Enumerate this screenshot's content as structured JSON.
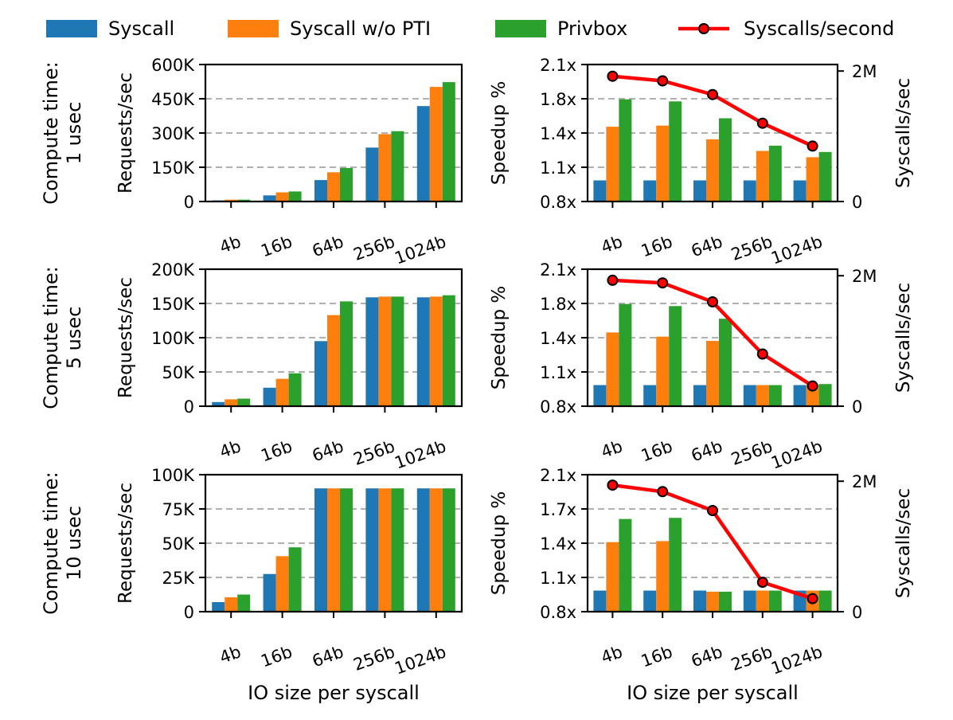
{
  "legend": [
    {
      "label": "Syscall",
      "color": "#1f77b4",
      "kind": "bar"
    },
    {
      "label": "Syscall w/o PTI",
      "color": "#ff7f0e",
      "kind": "bar"
    },
    {
      "label": "Privbox",
      "color": "#2ca02c",
      "kind": "bar"
    },
    {
      "label": "Syscalls/second",
      "color": "#ff0000",
      "kind": "line"
    }
  ],
  "chart_data": [
    {
      "type": "bar",
      "row": 1,
      "col": "left",
      "row_label": [
        "Compute time:",
        "1 usec"
      ],
      "ylabel": "Requests/sec",
      "xlabel": "",
      "categories": [
        "4b",
        "16b",
        "64b",
        "256b",
        "1024b"
      ],
      "yticks": [
        "0",
        "150K",
        "300K",
        "450K",
        "600K"
      ],
      "ylim": [
        0,
        600000
      ],
      "grid": true,
      "series": [
        {
          "name": "Syscall",
          "values": [
            5000,
            27000,
            94000,
            236000,
            418000
          ]
        },
        {
          "name": "Syscall w/o PTI",
          "values": [
            8000,
            40000,
            128000,
            295000,
            502000
          ]
        },
        {
          "name": "Privbox",
          "values": [
            8000,
            44000,
            147000,
            308000,
            523000
          ]
        }
      ]
    },
    {
      "type": "bar",
      "row": 1,
      "col": "right",
      "ylabel": "Speedup %",
      "y2label": "Syscalls/sec",
      "xlabel": "",
      "categories": [
        "4b",
        "16b",
        "64b",
        "256b",
        "1024b"
      ],
      "yticks": [
        "0.8x",
        "1.1x",
        "1.4x",
        "1.8x",
        "2.1x"
      ],
      "ylim": [
        0.8,
        2.1
      ],
      "y2ticks": [
        "0",
        "2M"
      ],
      "y2lim": [
        0,
        2100000
      ],
      "grid": true,
      "series": [
        {
          "name": "Syscall",
          "values": [
            1.0,
            1.0,
            1.0,
            1.0,
            1.0
          ]
        },
        {
          "name": "Syscall w/o PTI",
          "values": [
            1.51,
            1.52,
            1.39,
            1.28,
            1.22
          ]
        },
        {
          "name": "Privbox",
          "values": [
            1.77,
            1.75,
            1.59,
            1.33,
            1.27
          ]
        },
        {
          "name": "Syscalls/second",
          "axis": "right",
          "values": [
            1920000,
            1850000,
            1640000,
            1200000,
            850000
          ]
        }
      ]
    },
    {
      "type": "bar",
      "row": 2,
      "col": "left",
      "row_label": [
        "Compute time:",
        "5 usec"
      ],
      "ylabel": "Requests/sec",
      "xlabel": "",
      "categories": [
        "4b",
        "16b",
        "64b",
        "256b",
        "1024b"
      ],
      "yticks": [
        "0",
        "50K",
        "100K",
        "150K",
        "200K"
      ],
      "ylim": [
        0,
        200000
      ],
      "grid": true,
      "series": [
        {
          "name": "Syscall",
          "values": [
            6000,
            27000,
            95000,
            159000,
            159000
          ]
        },
        {
          "name": "Syscall w/o PTI",
          "values": [
            10000,
            40000,
            133000,
            160000,
            160000
          ]
        },
        {
          "name": "Privbox",
          "values": [
            11000,
            48000,
            153000,
            160000,
            162000
          ]
        }
      ]
    },
    {
      "type": "bar",
      "row": 2,
      "col": "right",
      "ylabel": "Speedup %",
      "y2label": "Syscalls/sec",
      "xlabel": "",
      "categories": [
        "4b",
        "16b",
        "64b",
        "256b",
        "1024b"
      ],
      "yticks": [
        "0.8x",
        "1.1x",
        "1.4x",
        "1.8x",
        "2.1x"
      ],
      "ylim": [
        0.8,
        2.1
      ],
      "y2ticks": [
        "0",
        "2M"
      ],
      "y2lim": [
        0,
        2100000
      ],
      "grid": true,
      "series": [
        {
          "name": "Syscall",
          "values": [
            1.0,
            1.0,
            1.0,
            1.0,
            1.0
          ]
        },
        {
          "name": "Syscall w/o PTI",
          "values": [
            1.5,
            1.46,
            1.42,
            1.0,
            1.0
          ]
        },
        {
          "name": "Privbox",
          "values": [
            1.77,
            1.75,
            1.63,
            1.0,
            1.01
          ]
        },
        {
          "name": "Syscalls/second",
          "axis": "right",
          "values": [
            1930000,
            1890000,
            1600000,
            800000,
            310000
          ]
        }
      ]
    },
    {
      "type": "bar",
      "row": 3,
      "col": "left",
      "row_label": [
        "Compute time:",
        "10 usec"
      ],
      "ylabel": "Requests/sec",
      "xlabel": "IO size per syscall",
      "categories": [
        "4b",
        "16b",
        "64b",
        "256b",
        "1024b"
      ],
      "yticks": [
        "0",
        "25K",
        "50K",
        "75K",
        "100K"
      ],
      "ylim": [
        0,
        100000
      ],
      "grid": true,
      "series": [
        {
          "name": "Syscall",
          "values": [
            7000,
            27500,
            90000,
            90000,
            90000
          ]
        },
        {
          "name": "Syscall w/o PTI",
          "values": [
            10500,
            40500,
            90000,
            90000,
            90000
          ]
        },
        {
          "name": "Privbox",
          "values": [
            12500,
            47000,
            90000,
            90000,
            90000
          ]
        }
      ]
    },
    {
      "type": "bar",
      "row": 3,
      "col": "right",
      "ylabel": "Speedup %",
      "y2label": "Syscalls/sec",
      "xlabel": "IO size per syscall",
      "categories": [
        "4b",
        "16b",
        "64b",
        "256b",
        "1024b"
      ],
      "yticks": [
        "0.8x",
        "1.1x",
        "1.4x",
        "1.7x",
        "2.1x"
      ],
      "ylim": [
        0.8,
        2.1
      ],
      "y2ticks": [
        "0",
        "2M"
      ],
      "y2lim": [
        0,
        2100000
      ],
      "grid": true,
      "series": [
        {
          "name": "Syscall",
          "values": [
            1.0,
            1.0,
            1.0,
            1.0,
            1.0
          ]
        },
        {
          "name": "Syscall w/o PTI",
          "values": [
            1.46,
            1.47,
            0.99,
            1.0,
            1.0
          ]
        },
        {
          "name": "Privbox",
          "values": [
            1.68,
            1.69,
            0.99,
            1.0,
            1.0
          ]
        },
        {
          "name": "Syscalls/second",
          "axis": "right",
          "values": [
            1940000,
            1840000,
            1550000,
            450000,
            200000
          ]
        }
      ]
    }
  ]
}
